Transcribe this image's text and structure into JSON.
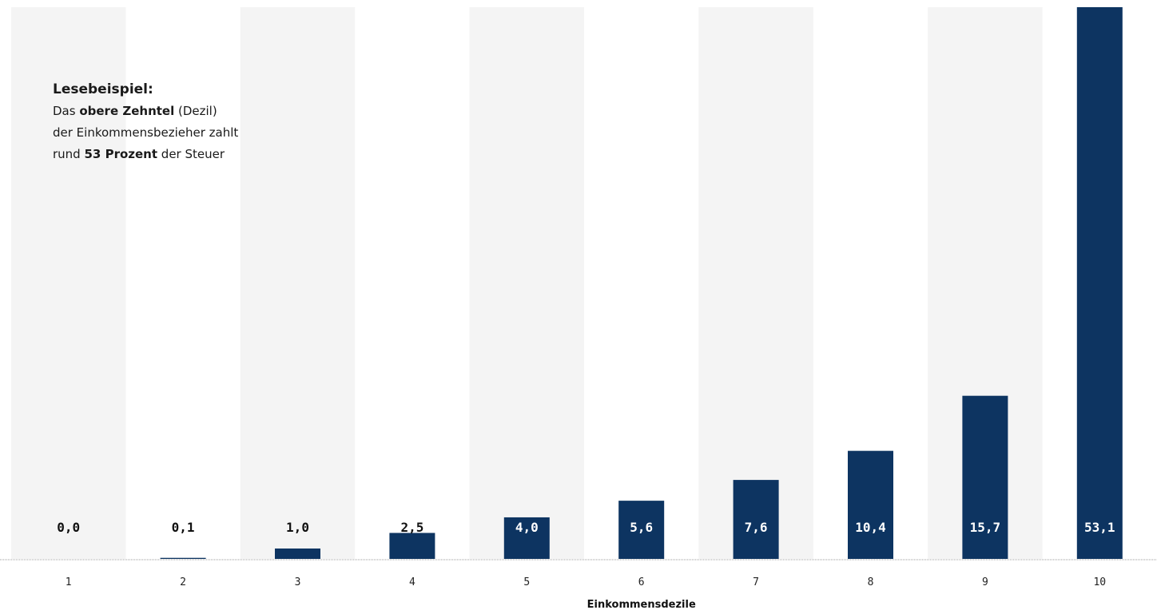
{
  "chart_data": {
    "type": "bar",
    "categories": [
      "1",
      "2",
      "3",
      "4",
      "5",
      "6",
      "7",
      "8",
      "9",
      "10"
    ],
    "values": [
      0.0,
      0.1,
      1.0,
      2.5,
      4.0,
      5.6,
      7.6,
      10.4,
      15.7,
      53.1
    ],
    "value_labels": [
      "0,0",
      "0,1",
      "1,0",
      "2,5",
      "4,0",
      "5,6",
      "7,6",
      "10,4",
      "15,7",
      "53,1"
    ],
    "xlabel": "Einkommensdezile",
    "ylabel": "",
    "ylim": [
      0,
      53.1
    ],
    "grid": false,
    "colors": {
      "bar": "#0d3461",
      "band": "#f4f4f4",
      "label_dark": "#111111",
      "label_light": "#ffffff",
      "baseline": "#999999"
    }
  },
  "annotation": {
    "title": "Lesebeispiel:",
    "line1_pre": "Das ",
    "line1_bold": "obere Zehntel",
    "line1_post": " (Dezil)",
    "line2": "der Einkommensbezieher zahlt",
    "line3_pre": "rund ",
    "line3_bold": "53 Prozent",
    "line3_post": " der Steuer"
  }
}
